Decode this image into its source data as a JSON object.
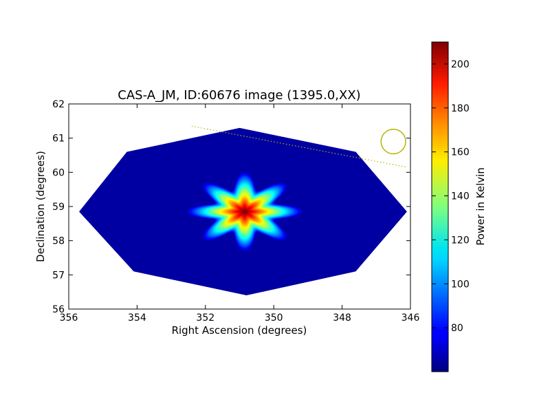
{
  "chart_data": {
    "type": "heatmap",
    "title": "CAS-A_JM, ID:60676 image (1395.0,XX)",
    "xlabel": "Right Ascension (degrees)",
    "ylabel": "Declination (degrees)",
    "xlim": [
      356,
      346
    ],
    "ylim": [
      56,
      62
    ],
    "x_ticks": [
      356,
      354,
      352,
      350,
      348,
      346
    ],
    "y_ticks": [
      56,
      57,
      58,
      59,
      60,
      61,
      62
    ],
    "colormap": "jet",
    "colorbar": {
      "label": "Power in Kelvin",
      "range": [
        60,
        210
      ],
      "ticks": [
        80,
        100,
        120,
        140,
        160,
        180,
        200
      ]
    },
    "footprint_polygon": [
      [
        355.7,
        58.85
      ],
      [
        354.3,
        60.6
      ],
      [
        351.0,
        61.3
      ],
      [
        347.6,
        60.6
      ],
      [
        346.1,
        58.85
      ],
      [
        347.6,
        57.1
      ],
      [
        350.8,
        56.4
      ],
      [
        354.1,
        57.1
      ]
    ],
    "background_level": 65,
    "source": {
      "ra": 350.85,
      "dec": 58.85,
      "peak": 210
    },
    "beam_circle": {
      "ra": 346.5,
      "dec": 60.9,
      "radius_deg": 0.36,
      "color": "#b5b500"
    },
    "track_line": {
      "from": [
        352.4,
        61.35
      ],
      "to": [
        346.1,
        60.15
      ],
      "color": "#b5b500"
    }
  }
}
